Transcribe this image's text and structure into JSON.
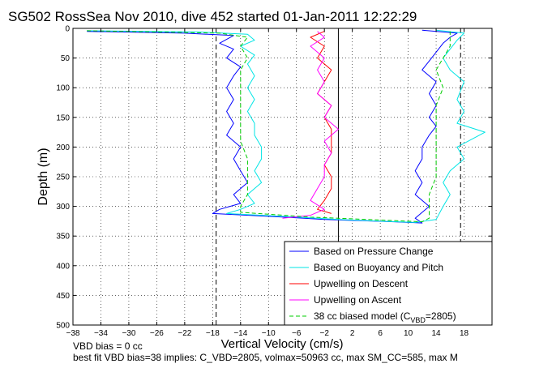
{
  "chart_data": {
    "type": "line",
    "title": "SG502 RossSea Nov 2010, dive 452 started 01-Jan-2011 12:22:29",
    "xlabel": "Vertical Velocity (cm/s)",
    "ylabel": "Depth (m)",
    "xlim": [
      -38,
      22
    ],
    "ylim": [
      500,
      0
    ],
    "y_reversed": true,
    "grid": true,
    "grid_style": "dotted",
    "x_ticks": [
      -38,
      -34,
      -30,
      -26,
      -22,
      -18,
      -14,
      -10,
      -6,
      -2,
      2,
      6,
      10,
      14,
      18
    ],
    "x_tick_labels": [
      "−38",
      "−34",
      "−30",
      "−26",
      "−22",
      "−18",
      "−14",
      "−10",
      "−6",
      "−2",
      "2",
      "6",
      "10",
      "14",
      "18"
    ],
    "y_ticks": [
      0,
      50,
      100,
      150,
      200,
      250,
      300,
      350,
      400,
      450,
      500
    ],
    "y_tick_labels": [
      "0",
      "50",
      "100",
      "150",
      "200",
      "250",
      "300",
      "350",
      "400",
      "450",
      "500"
    ],
    "legend_location": "bottom-right",
    "reference_lines": [
      {
        "orientation": "vertical",
        "x": 0,
        "style": "solid",
        "color": "#000000"
      },
      {
        "orientation": "vertical",
        "x": -17.5,
        "style": "dashed",
        "color": "#000000"
      },
      {
        "orientation": "vertical",
        "x": 17.5,
        "style": "dashed",
        "color": "#000000"
      }
    ],
    "series": [
      {
        "name": "Based on Pressure Change",
        "color": "#0000ff",
        "dash": "solid",
        "points": [
          [
            -36,
            5
          ],
          [
            -22,
            8
          ],
          [
            -15,
            12
          ],
          [
            -17,
            25
          ],
          [
            -15,
            35
          ],
          [
            -16,
            50
          ],
          [
            -14,
            65
          ],
          [
            -15,
            80
          ],
          [
            -16,
            100
          ],
          [
            -15,
            120
          ],
          [
            -16,
            140
          ],
          [
            -15,
            160
          ],
          [
            -16,
            180
          ],
          [
            -14,
            200
          ],
          [
            -15,
            220
          ],
          [
            -14,
            240
          ],
          [
            -13,
            260
          ],
          [
            -15,
            280
          ],
          [
            -14,
            295
          ],
          [
            -17,
            305
          ],
          [
            -18,
            312
          ],
          [
            -8,
            318
          ],
          [
            -2,
            322
          ],
          [
            8,
            326
          ],
          [
            12,
            328
          ],
          [
            11,
            320
          ],
          [
            13,
            300
          ],
          [
            12,
            290
          ],
          [
            11,
            280
          ],
          [
            12,
            260
          ],
          [
            11,
            240
          ],
          [
            12,
            220
          ],
          [
            12,
            200
          ],
          [
            13,
            180
          ],
          [
            14,
            165
          ],
          [
            13,
            150
          ],
          [
            14,
            130
          ],
          [
            13,
            110
          ],
          [
            14,
            90
          ],
          [
            12,
            70
          ],
          [
            13,
            55
          ],
          [
            14,
            40
          ],
          [
            15,
            25
          ],
          [
            16,
            15
          ],
          [
            17,
            8
          ],
          [
            12,
            3
          ]
        ]
      },
      {
        "name": "Based on Buoyancy and Pitch",
        "color": "#00e5e5",
        "dash": "solid",
        "points": [
          [
            -36,
            4
          ],
          [
            -20,
            6
          ],
          [
            -13,
            10
          ],
          [
            -12,
            20
          ],
          [
            -14,
            30
          ],
          [
            -12,
            45
          ],
          [
            -13,
            60
          ],
          [
            -12,
            80
          ],
          [
            -13,
            100
          ],
          [
            -12,
            120
          ],
          [
            -13,
            140
          ],
          [
            -12,
            160
          ],
          [
            -12,
            180
          ],
          [
            -11,
            200
          ],
          [
            -11,
            220
          ],
          [
            -12,
            240
          ],
          [
            -11,
            260
          ],
          [
            -13,
            280
          ],
          [
            -12,
            295
          ],
          [
            -14,
            305
          ],
          [
            -16,
            312
          ],
          [
            -6,
            318
          ],
          [
            0,
            322
          ],
          [
            6,
            325
          ],
          [
            11,
            327
          ],
          [
            14,
            322
          ],
          [
            15,
            300
          ],
          [
            16,
            280
          ],
          [
            15,
            260
          ],
          [
            16,
            240
          ],
          [
            18,
            220
          ],
          [
            17,
            200
          ],
          [
            21,
            175
          ],
          [
            17,
            160
          ],
          [
            18,
            140
          ],
          [
            17,
            120
          ],
          [
            18,
            90
          ],
          [
            16,
            70
          ],
          [
            15,
            50
          ],
          [
            16,
            35
          ],
          [
            17,
            20
          ],
          [
            18,
            8
          ],
          [
            14,
            3
          ]
        ]
      },
      {
        "name": "Upwelling on Descent",
        "color": "#ff0000",
        "dash": "solid",
        "points": [
          [
            -2,
            5
          ],
          [
            -4,
            15
          ],
          [
            -2,
            30
          ],
          [
            -3,
            50
          ],
          [
            -1,
            70
          ],
          [
            -2,
            90
          ],
          [
            -3,
            110
          ],
          [
            -1,
            130
          ],
          [
            -2,
            150
          ],
          [
            -1,
            170
          ],
          [
            -1,
            190
          ],
          [
            -1,
            210
          ],
          [
            -2,
            230
          ],
          [
            -1,
            250
          ],
          [
            -1,
            270
          ],
          [
            -2,
            290
          ],
          [
            -3,
            305
          ],
          [
            -1,
            312
          ]
        ]
      },
      {
        "name": "Upwelling on Ascent",
        "color": "#ff00ff",
        "dash": "solid",
        "points": [
          [
            -8,
            320
          ],
          [
            -4,
            315
          ],
          [
            -2,
            305
          ],
          [
            -4,
            290
          ],
          [
            -3,
            270
          ],
          [
            -2,
            250
          ],
          [
            -2,
            230
          ],
          [
            -1,
            210
          ],
          [
            -2,
            190
          ],
          [
            0,
            170
          ],
          [
            -2,
            150
          ],
          [
            -1,
            130
          ],
          [
            -3,
            110
          ],
          [
            -2,
            90
          ],
          [
            -3,
            70
          ],
          [
            -2,
            50
          ],
          [
            -4,
            30
          ],
          [
            -2,
            15
          ],
          [
            -3,
            5
          ]
        ]
      },
      {
        "name": "38 cc biased model (C_VBD=2805)",
        "color": "#00cc00",
        "dash": "dashed",
        "points": [
          [
            -36,
            4
          ],
          [
            -17,
            8
          ],
          [
            -13,
            15
          ],
          [
            -14,
            30
          ],
          [
            -13,
            50
          ],
          [
            -14,
            70
          ],
          [
            -14,
            100
          ],
          [
            -14,
            130
          ],
          [
            -14,
            160
          ],
          [
            -14,
            190
          ],
          [
            -13,
            220
          ],
          [
            -13,
            250
          ],
          [
            -13,
            280
          ],
          [
            -14,
            300
          ],
          [
            -14,
            310
          ],
          [
            -4,
            318
          ],
          [
            4,
            322
          ],
          [
            12,
            326
          ],
          [
            13,
            320
          ],
          [
            13,
            300
          ],
          [
            13,
            280
          ],
          [
            14,
            250
          ],
          [
            14,
            220
          ],
          [
            14,
            190
          ],
          [
            14,
            160
          ],
          [
            14,
            130
          ],
          [
            15,
            100
          ],
          [
            14,
            70
          ],
          [
            15,
            50
          ],
          [
            16,
            30
          ],
          [
            16,
            15
          ],
          [
            16,
            5
          ]
        ]
      }
    ],
    "legend": {
      "items": [
        {
          "label": "Based on Pressure Change",
          "color": "#0000ff",
          "dash": "solid"
        },
        {
          "label": "Based on Buoyancy and Pitch",
          "color": "#00e5e5",
          "dash": "solid"
        },
        {
          "label": "Upwelling on Descent",
          "color": "#ff0000",
          "dash": "solid"
        },
        {
          "label": "Upwelling on Ascent",
          "color": "#ff00ff",
          "dash": "solid"
        },
        {
          "label": "38 cc biased model (C",
          "sub": "VBD",
          "tail": "=2805)",
          "color": "#00cc00",
          "dash": "dashed"
        }
      ]
    }
  },
  "notes": {
    "line1": "VBD bias = 0 cc",
    "line2": "best fit VBD bias=38 implies: C_VBD=2805, volmax=50963 cc, max SM_CC=585, max M"
  }
}
